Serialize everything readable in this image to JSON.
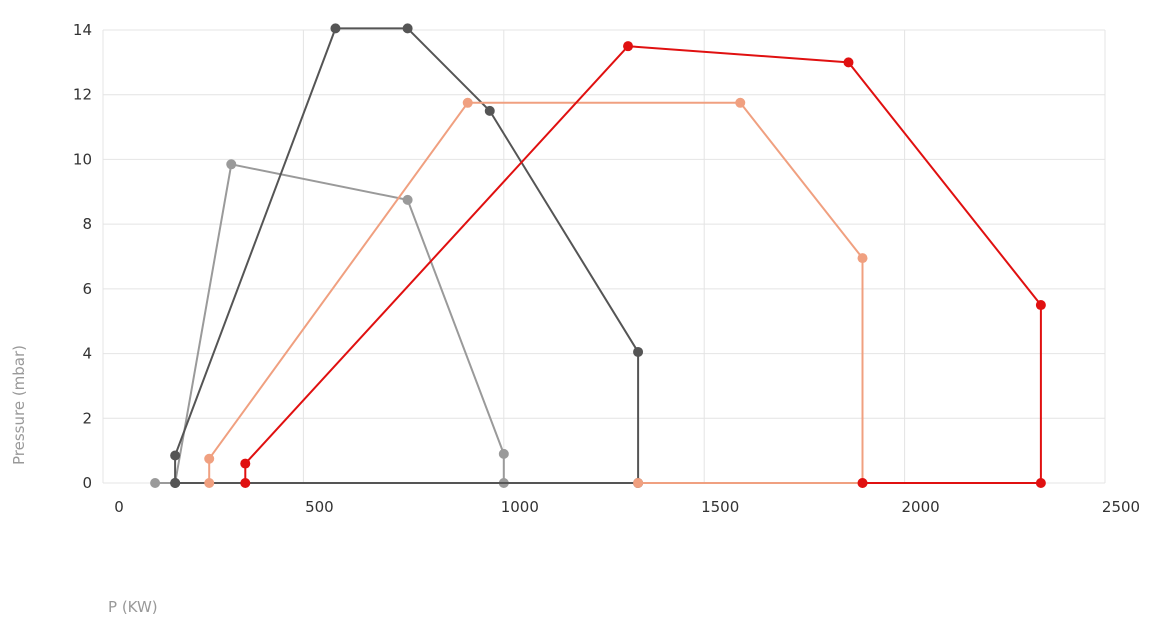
{
  "chart_data": {
    "type": "line",
    "title": "",
    "xlabel": "P (KW)",
    "ylabel": "Pressure  (mbar)",
    "xlim": [
      0,
      2500
    ],
    "ylim": [
      0,
      14
    ],
    "xticks": [
      0,
      500,
      1000,
      1500,
      2000,
      2500
    ],
    "yticks": [
      0,
      2,
      4,
      6,
      8,
      10,
      12,
      14
    ],
    "grid": true,
    "legend": "none",
    "series": [
      {
        "color": "#9a9a9a",
        "points": [
          [
            130,
            0
          ],
          [
            180,
            0
          ],
          [
            320,
            9.85
          ],
          [
            760,
            8.75
          ],
          [
            1000,
            0.9
          ],
          [
            1000,
            0
          ]
        ]
      },
      {
        "color": "#555555",
        "points": [
          [
            180,
            0
          ],
          [
            180,
            0.85
          ],
          [
            580,
            14.05
          ],
          [
            760,
            14.05
          ],
          [
            965,
            11.5
          ],
          [
            1335,
            4.05
          ],
          [
            1335,
            0
          ],
          [
            180,
            0
          ]
        ]
      },
      {
        "color": "#f0a080",
        "points": [
          [
            265,
            0
          ],
          [
            265,
            0.75
          ],
          [
            910,
            11.75
          ],
          [
            1590,
            11.75
          ],
          [
            1895,
            6.95
          ],
          [
            1895,
            0
          ],
          [
            1335,
            0
          ]
        ]
      },
      {
        "color": "#e01010",
        "points": [
          [
            355,
            0
          ],
          [
            355,
            0.6
          ],
          [
            1310,
            13.5
          ],
          [
            1860,
            13.0
          ],
          [
            2340,
            5.5
          ],
          [
            2340,
            0
          ],
          [
            1895,
            0
          ]
        ]
      }
    ]
  }
}
